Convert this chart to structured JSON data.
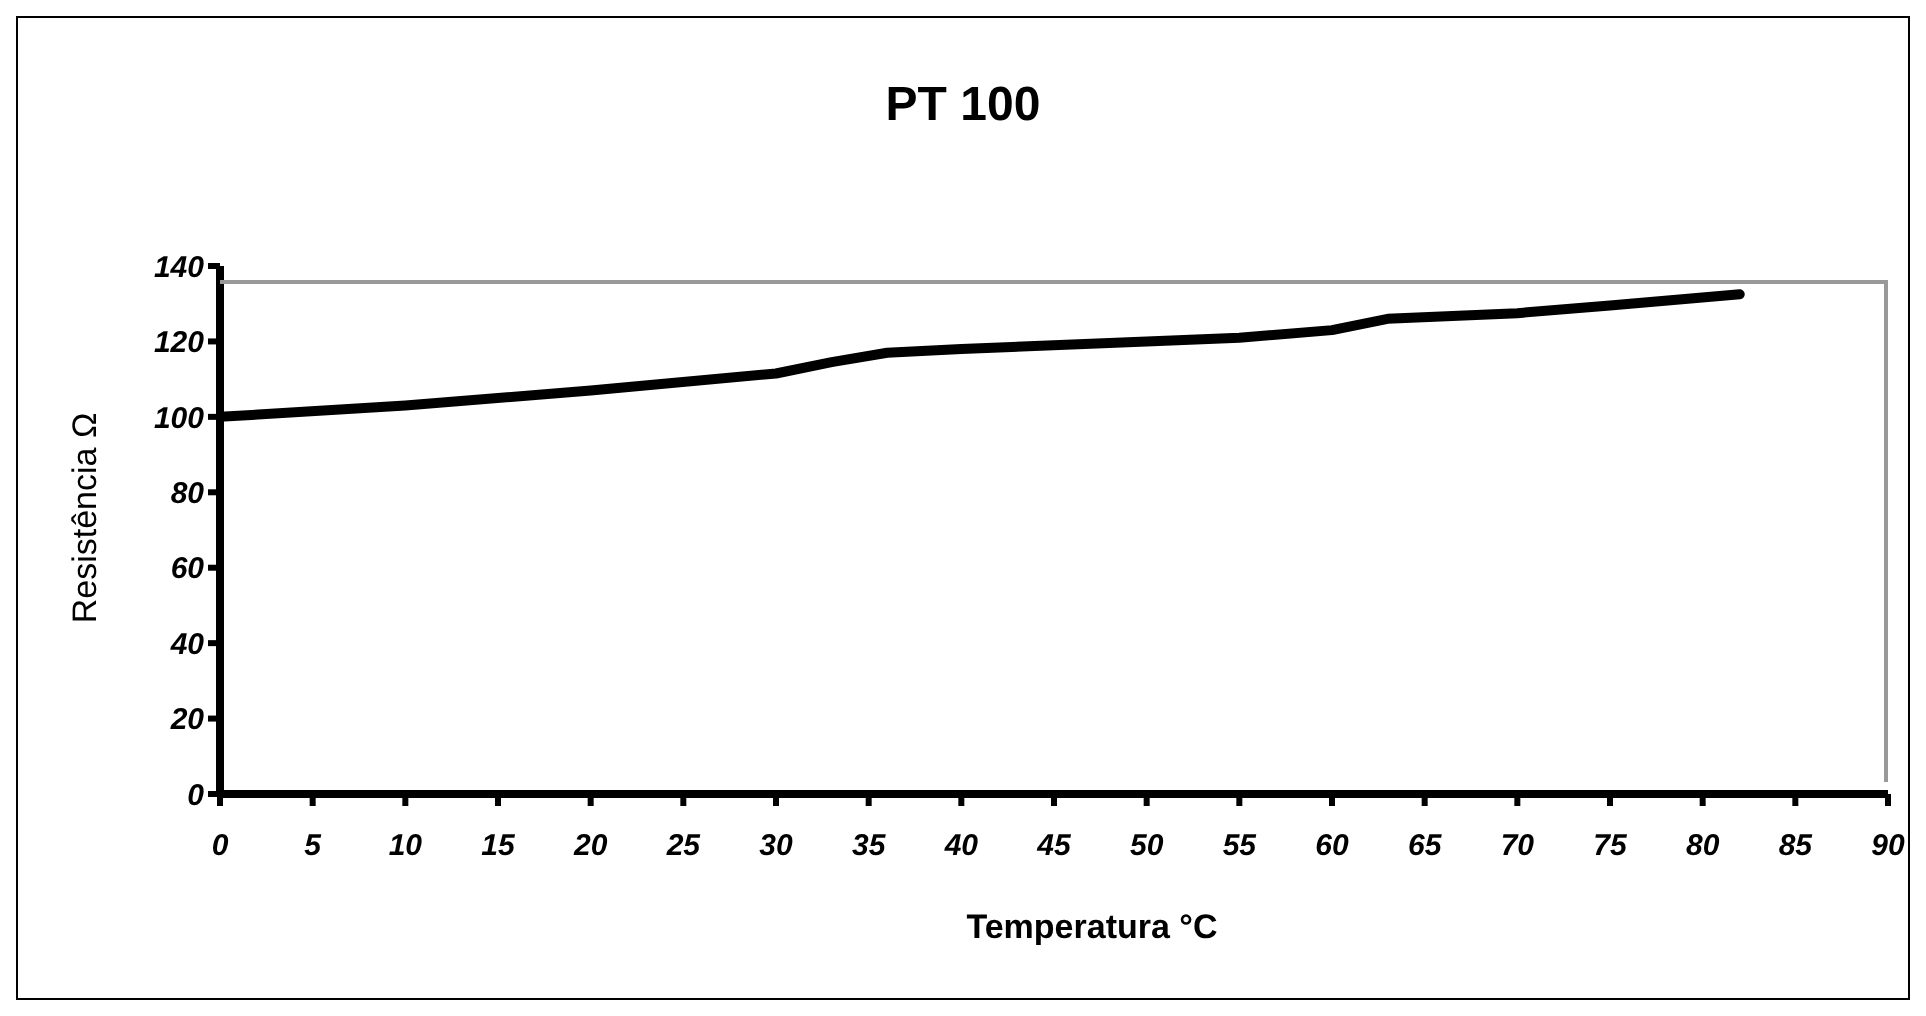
{
  "chart_data": {
    "type": "line",
    "title": "PT 100",
    "xlabel": "Temperatura °C",
    "ylabel": "Resistência Ω",
    "series": [
      {
        "color": "#000000",
        "x": [
          0,
          10,
          20,
          30,
          33,
          36,
          40,
          50,
          55,
          60,
          63,
          70,
          75,
          82
        ],
        "values": [
          100,
          103,
          107,
          111.5,
          114.5,
          117,
          118,
          120,
          121,
          123,
          126,
          127.5,
          129.5,
          132.5
        ]
      }
    ],
    "xlim": [
      0,
      90
    ],
    "xticks": [
      0,
      5,
      10,
      15,
      20,
      25,
      30,
      35,
      40,
      45,
      50,
      55,
      60,
      65,
      70,
      75,
      80,
      85,
      90
    ],
    "ylim": [
      0,
      140
    ],
    "yticks": [
      0,
      20,
      40,
      60,
      80,
      100,
      120,
      140
    ],
    "grid": false,
    "legend": false,
    "marker": "none",
    "line_style": "solid"
  }
}
